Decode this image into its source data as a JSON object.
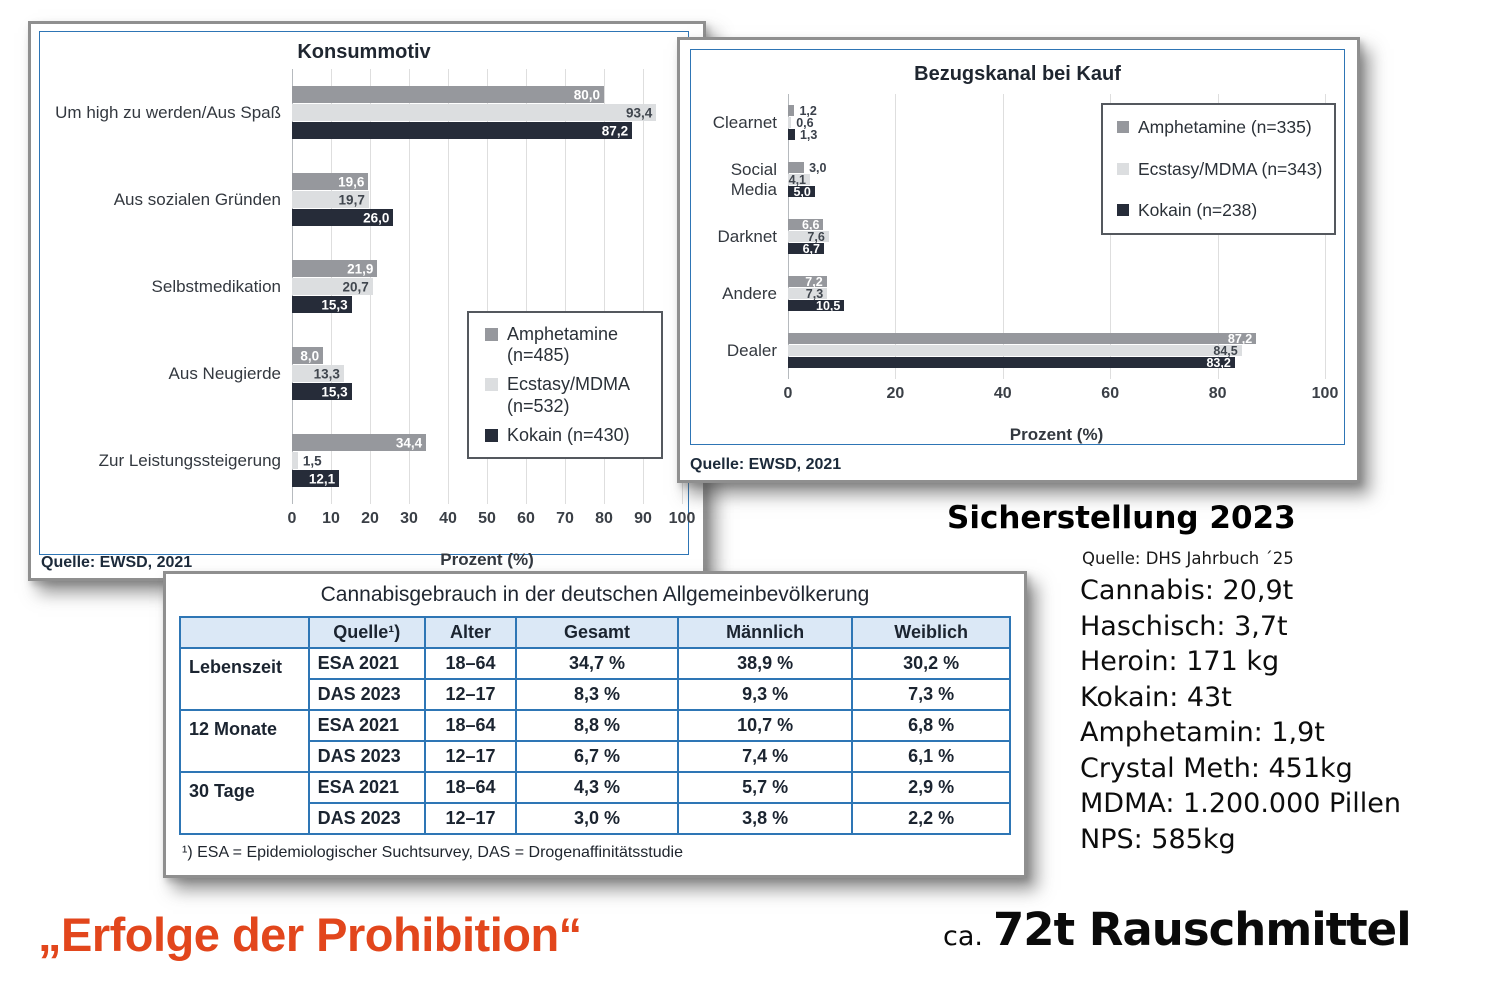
{
  "chart_data": [
    {
      "type": "bar",
      "orientation": "horizontal",
      "title": "Konsummotiv",
      "xlabel": "Prozent (%)",
      "xlim": [
        0,
        100
      ],
      "xstep": 10,
      "grid": true,
      "legend_position": "inside-right",
      "source": "Quelle: EWSD, 2021",
      "categories": [
        "Um high zu werden/Aus Spaß",
        "Aus sozialen Gründen",
        "Selbstmedikation",
        "Aus Neugierde",
        "Zur Leistungssteigerung"
      ],
      "series": [
        {
          "name": "Amphetamine (n=485)",
          "legend": "Amphetamine\n(n=485)",
          "color": "#96989d",
          "label_color": "#ffffff",
          "values": [
            80.0,
            19.6,
            21.9,
            8.0,
            34.4
          ],
          "labels": [
            "80,0",
            "19,6",
            "21,9",
            "8,0",
            "34,4"
          ]
        },
        {
          "name": "Ecstasy/MDMA (n=532)",
          "legend": "Ecstasy/MDMA\n(n=532)",
          "color": "#dcdee0",
          "label_color": "#40464e",
          "values": [
            93.4,
            19.7,
            20.7,
            13.3,
            1.5
          ],
          "labels": [
            "93,4",
            "19,7",
            "20,7",
            "13,3",
            "1,5"
          ]
        },
        {
          "name": "Kokain (n=430)",
          "legend": "Kokain (n=430)",
          "color": "#262c39",
          "label_color": "#ffffff",
          "values": [
            87.2,
            26.0,
            15.3,
            15.3,
            12.1
          ],
          "labels": [
            "87,2",
            "26,0",
            "15,3",
            "15,3",
            "12,1"
          ]
        }
      ],
      "label_inside_min": 8
    },
    {
      "type": "bar",
      "orientation": "horizontal",
      "title": "Bezugskanal bei Kauf",
      "xlabel": "Prozent (%)",
      "xlim": [
        0,
        100
      ],
      "xstep": 20,
      "grid": true,
      "legend_position": "inside-right",
      "source": "Quelle: EWSD, 2021",
      "categories": [
        "Clearnet",
        "Social Media",
        "Darknet",
        "Andere",
        "Dealer"
      ],
      "series": [
        {
          "name": "Amphetamine (n=335)",
          "legend": "Amphetamine (n=335)",
          "color": "#96989d",
          "label_color": "#ffffff",
          "values": [
            1.2,
            3.0,
            6.6,
            7.2,
            87.2
          ],
          "labels": [
            "1,2",
            "3,0",
            "6,6",
            "7,2",
            "87,2"
          ]
        },
        {
          "name": "Ecstasy/MDMA (n=343)",
          "legend": "Ecstasy/MDMA (n=343)",
          "color": "#dcdee0",
          "label_color": "#40464e",
          "values": [
            0.6,
            4.1,
            7.6,
            7.3,
            84.5
          ],
          "labels": [
            "0,6",
            "4,1",
            "7,6",
            "7,3",
            "84,5"
          ]
        },
        {
          "name": "Kokain (n=238)",
          "legend": "Kokain (n=238)",
          "color": "#262c39",
          "label_color": "#ffffff",
          "values": [
            1.3,
            5.0,
            6.7,
            10.5,
            83.2
          ],
          "labels": [
            "1,3",
            "5,0",
            "6,7",
            "10,5",
            "83,2"
          ]
        }
      ],
      "label_inside_min": 4
    },
    {
      "type": "table",
      "title": "Cannabisgebrauch in der deutschen Allgemeinbevölkerung",
      "columns": [
        "",
        "Quelle¹)",
        "Alter",
        "Gesamt",
        "Männlich",
        "Weiblich"
      ],
      "row_groups": [
        {
          "label": "Lebenszeit",
          "rows": [
            [
              "ESA 2021",
              "18–64",
              "34,7 %",
              "38,9 %",
              "30,2 %"
            ],
            [
              "DAS 2023",
              "12–17",
              "8,3 %",
              "9,3 %",
              "7,3 %"
            ]
          ]
        },
        {
          "label": "12 Monate",
          "rows": [
            [
              "ESA 2021",
              "18–64",
              "8,8 %",
              "10,7 %",
              "6,8 %"
            ],
            [
              "DAS 2023",
              "12–17",
              "6,7 %",
              "7,4 %",
              "6,1 %"
            ]
          ]
        },
        {
          "label": "30 Tage",
          "rows": [
            [
              "ESA 2021",
              "18–64",
              "4,3 %",
              "5,7 %",
              "2,9 %"
            ],
            [
              "DAS 2023",
              "12–17",
              "3,0 %",
              "3,8 %",
              "2,2 %"
            ]
          ]
        }
      ],
      "footnote": "¹)  ESA = Epidemiologischer Suchtsurvey, DAS = Drogenaffinitätsstudie",
      "header_bg": "#dbe8f6",
      "border_color": "#2e76b5"
    }
  ],
  "sicherstellung": {
    "title": "Sicherstellung 2023",
    "source": "Quelle: DHS Jahrbuch ´25",
    "items": [
      "Cannabis: 20,9t",
      "Haschisch: 3,7t",
      "Heroin: 171 kg",
      "Kokain: 43t",
      "Amphetamin: 1,9t",
      "Crystal Meth: 451kg",
      "MDMA: 1.200.000 Pillen",
      "NPS: 585kg"
    ]
  },
  "footer": {
    "quote": "„Erfolge der Prohibition“",
    "quote_color": "#e2461c",
    "total_prefix": "ca.",
    "total": "72t Rauschmittel"
  }
}
